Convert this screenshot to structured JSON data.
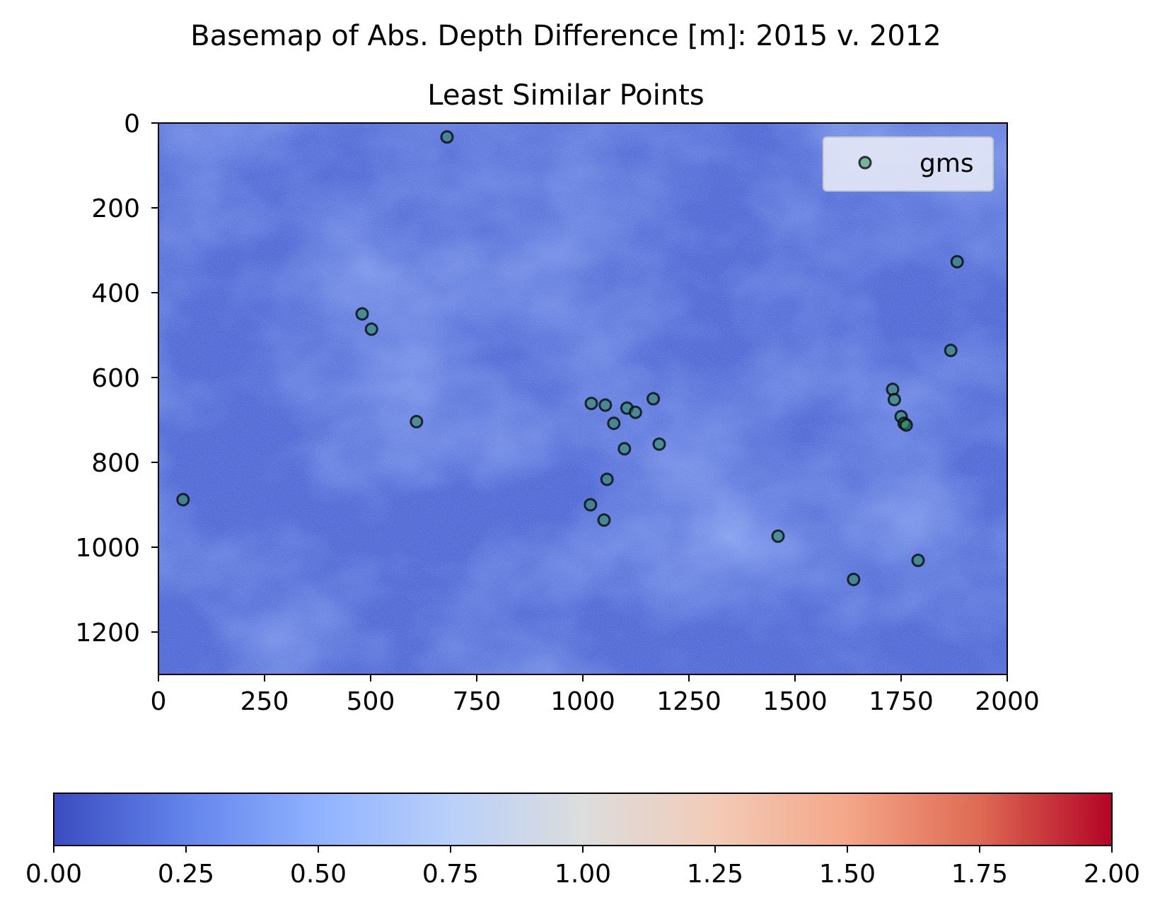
{
  "chart_data": {
    "type": "scatter",
    "suptitle": "Basemap of Abs. Depth Difference [m]: 2015 v. 2012",
    "title": "Least Similar Points",
    "background": "heatmap",
    "xlim": [
      0,
      2000
    ],
    "ylim": [
      1300,
      0
    ],
    "x_ticks": [
      0,
      250,
      500,
      750,
      1000,
      1250,
      1500,
      1750,
      2000
    ],
    "y_ticks": [
      0,
      200,
      400,
      600,
      800,
      1000,
      1200
    ],
    "x_tick_labels": [
      "0",
      "250",
      "500",
      "750",
      "1000",
      "1250",
      "1500",
      "1750",
      "2000"
    ],
    "y_tick_labels": [
      "0",
      "200",
      "400",
      "600",
      "800",
      "1000",
      "1200"
    ],
    "grid": false,
    "legend_position": "top-right",
    "series": [
      {
        "name": "gms",
        "marker": "circle",
        "color": "#2e8b57",
        "edge_color": "#000000",
        "alpha": 0.55,
        "points": [
          {
            "x": 680,
            "y": 33
          },
          {
            "x": 1882,
            "y": 327
          },
          {
            "x": 480,
            "y": 450
          },
          {
            "x": 502,
            "y": 486
          },
          {
            "x": 1867,
            "y": 536
          },
          {
            "x": 1730,
            "y": 628
          },
          {
            "x": 1734,
            "y": 652
          },
          {
            "x": 1166,
            "y": 650
          },
          {
            "x": 1020,
            "y": 661
          },
          {
            "x": 1053,
            "y": 665
          },
          {
            "x": 1104,
            "y": 672
          },
          {
            "x": 1124,
            "y": 682
          },
          {
            "x": 1750,
            "y": 692
          },
          {
            "x": 1757,
            "y": 708
          },
          {
            "x": 1762,
            "y": 712
          },
          {
            "x": 608,
            "y": 704
          },
          {
            "x": 1073,
            "y": 708
          },
          {
            "x": 1180,
            "y": 757
          },
          {
            "x": 1098,
            "y": 768
          },
          {
            "x": 1057,
            "y": 840
          },
          {
            "x": 58,
            "y": 888
          },
          {
            "x": 1018,
            "y": 900
          },
          {
            "x": 1050,
            "y": 936
          },
          {
            "x": 1460,
            "y": 974
          },
          {
            "x": 1790,
            "y": 1031
          },
          {
            "x": 1638,
            "y": 1076
          }
        ]
      }
    ],
    "colorbar": {
      "colormap": "coolwarm",
      "range": [
        0,
        2
      ],
      "ticks": [
        0,
        0.25,
        0.5,
        0.75,
        1.0,
        1.25,
        1.5,
        1.75,
        2.0
      ],
      "tick_labels": [
        "0.00",
        "0.25",
        "0.50",
        "0.75",
        "1.00",
        "1.25",
        "1.50",
        "1.75",
        "2.00"
      ],
      "colors": [
        "#3b4cc0",
        "#6384eb",
        "#90b2fe",
        "#b9d0f9",
        "#dcdddd",
        "#f2cbb7",
        "#f4a688",
        "#de6a53",
        "#b40426"
      ]
    }
  }
}
